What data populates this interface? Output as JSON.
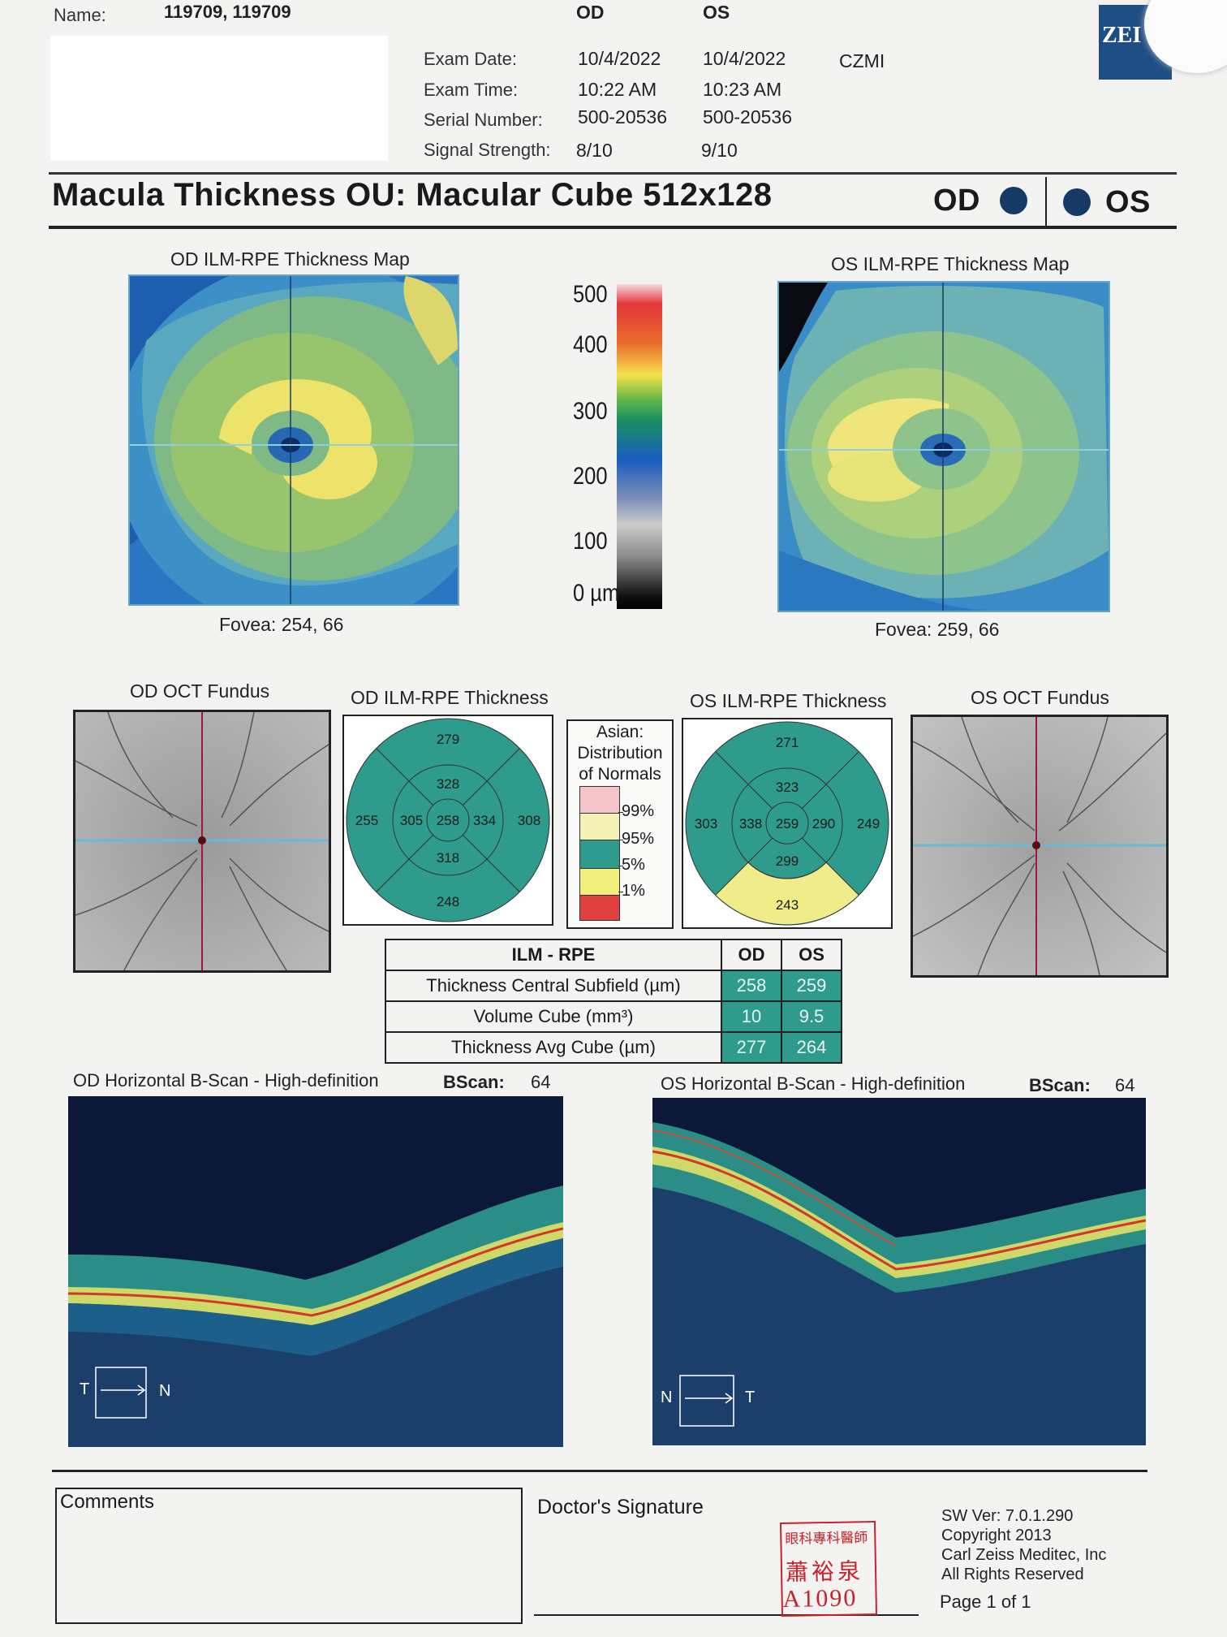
{
  "header": {
    "name_label": "Name:",
    "name_value": "119709, 119709",
    "col_od": "OD",
    "col_os": "OS",
    "rows": [
      {
        "label": "Exam Date:",
        "od": "10/4/2022",
        "os": "10/4/2022"
      },
      {
        "label": "Exam Time:",
        "od": "10:22 AM",
        "os": "10:23 AM"
      },
      {
        "label": "Serial Number:",
        "od": "500-20536",
        "os": "500-20536"
      },
      {
        "label": "Signal Strength:",
        "od": "8/10",
        "os": "9/10"
      }
    ],
    "site": "CZMI",
    "logo_text": "ZEI"
  },
  "title": "Macula Thickness OU: Macular Cube 512x128",
  "eye_od": "OD",
  "eye_os": "OS",
  "maps": {
    "od_title": "OD ILM-RPE Thickness Map",
    "os_title": "OS ILM-RPE Thickness Map",
    "od_fovea": "Fovea: 254, 66",
    "os_fovea": "Fovea: 259, 66",
    "scale": [
      "500",
      "400",
      "300",
      "200",
      "100",
      "0 µm"
    ]
  },
  "fundus": {
    "od_title": "OD OCT Fundus",
    "os_title": "OS OCT Fundus"
  },
  "etdrs": {
    "od_title": "OD ILM-RPE Thickness",
    "os_title": "OS ILM-RPE Thickness",
    "od": {
      "center": "258",
      "inner_sup": "328",
      "inner_inf": "318",
      "inner_left": "305",
      "inner_right": "334",
      "outer_sup": "279",
      "outer_inf": "248",
      "outer_left": "255",
      "outer_right": "308"
    },
    "os": {
      "center": "259",
      "inner_sup": "323",
      "inner_inf": "299",
      "inner_left": "338",
      "inner_right": "290",
      "outer_sup": "271",
      "outer_inf": "243",
      "outer_left": "303",
      "outer_right": "249"
    },
    "colors": {
      "normal": "#2e9b8d",
      "borderline_yellow": "#f0ec8a"
    }
  },
  "normals": {
    "title_l1": "Asian:",
    "title_l2": "Distribution",
    "title_l3": "of Normals",
    "levels": [
      "99%",
      "95%",
      "5%",
      "1%"
    ],
    "colors": [
      "#f4c6c9",
      "#f3f1b6",
      "#2e9b8d",
      "#f2ef7c",
      "#e04040"
    ]
  },
  "table": {
    "header": [
      "ILM - RPE",
      "OD",
      "OS"
    ],
    "rows": [
      {
        "label": "Thickness Central Subfield (µm)",
        "od": "258",
        "os": "259"
      },
      {
        "label": "Volume Cube (mm³)",
        "od": "10",
        "os": "9.5"
      },
      {
        "label": "Thickness Avg Cube (µm)",
        "od": "277",
        "os": "264"
      }
    ]
  },
  "bscan": {
    "od_title": "OD Horizontal B-Scan - High-definition",
    "os_title": "OS Horizontal B-Scan - High-definition",
    "bscan_label": "BScan:",
    "od_value": "64",
    "os_value": "64",
    "od_orient_left": "T",
    "od_orient_right": "N",
    "os_orient_left": "N",
    "os_orient_right": "T"
  },
  "footer": {
    "comments": "Comments",
    "signature": "Doctor's Signature",
    "stamp_l1": "眼科專科醫師",
    "stamp_l2": "蕭裕泉",
    "stamp_l3": "A1090",
    "sw_ver": "SW Ver: 7.0.1.290",
    "copyright": "Copyright 2013",
    "company": "Carl Zeiss Meditec, Inc",
    "rights": "All Rights Reserved",
    "page": "Page 1 of 1"
  }
}
